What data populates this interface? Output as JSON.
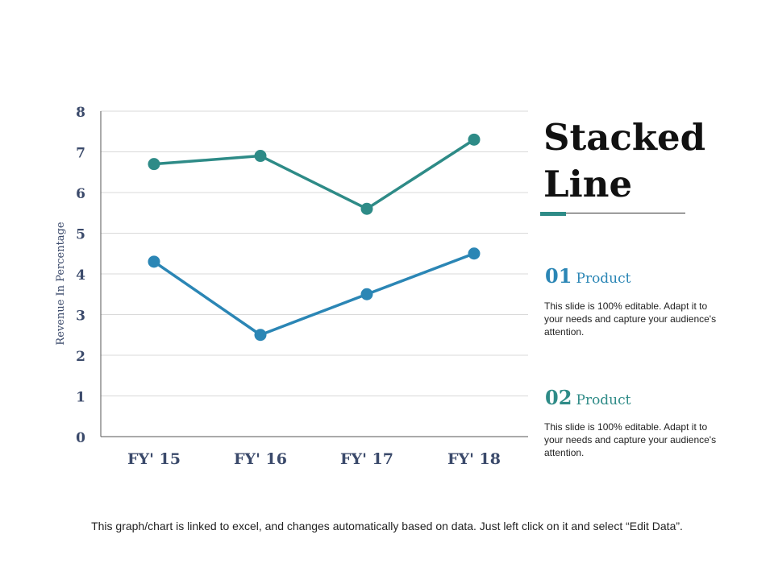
{
  "title": "Stacked Line",
  "products": [
    {
      "number": "01",
      "name": "Product",
      "description": "This slide is 100% editable. Adapt it to your needs and capture your audience's attention."
    },
    {
      "number": "02",
      "name": "Product",
      "description": "This slide is 100% editable. Adapt it to your needs and capture your audience's attention."
    }
  ],
  "footer": "This graph/chart is linked to excel, and changes automatically based on data. Just left click on it and select “Edit Data”.",
  "colors": {
    "series_upper": "#2e8b87",
    "series_lower": "#2b86b5",
    "axis_text": "#3b4a6b",
    "product_01": "#2b86b5",
    "product_02": "#2e8b87"
  },
  "chart_data": {
    "type": "line",
    "categories": [
      "FY' 15",
      "FY' 16",
      "FY' 17",
      "FY' 18"
    ],
    "series": [
      {
        "values": [
          6.7,
          6.9,
          5.6,
          7.3
        ]
      },
      {
        "values": [
          4.3,
          2.5,
          3.5,
          4.5
        ]
      }
    ],
    "ylabel": "Revenue In Percentage",
    "ylim": [
      0,
      8
    ],
    "yticks": [
      0,
      1,
      2,
      3,
      4,
      5,
      6,
      7,
      8
    ],
    "grid": true,
    "legend": "none"
  }
}
